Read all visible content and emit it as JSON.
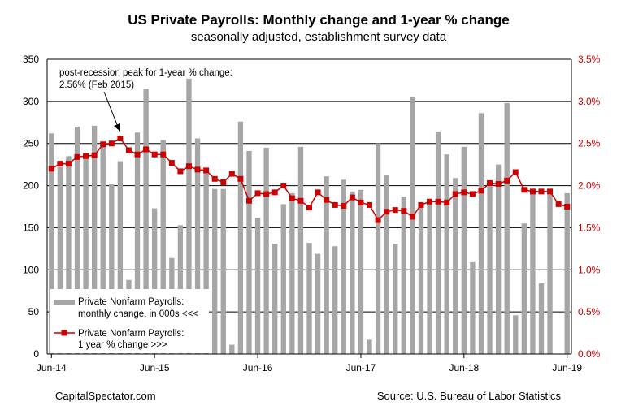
{
  "chart_data": {
    "type": "bar+line",
    "title": "US Private Payrolls: Monthly change and 1-year % change",
    "subtitle": "seasonally adjusted, establishment survey data",
    "x_tick_labels": [
      "Jun-14",
      "Jun-15",
      "Jun-16",
      "Jun-17",
      "Jun-18",
      "Jun-19"
    ],
    "y_left_ticks": [
      "0",
      "50",
      "100",
      "150",
      "200",
      "250",
      "300",
      "350"
    ],
    "y_right_ticks": [
      "0.0%",
      "0.5%",
      "1.0%",
      "1.5%",
      "2.0%",
      "2.5%",
      "3.0%",
      "3.5%"
    ],
    "y_left_range": [
      0,
      350
    ],
    "y_right_range": [
      0,
      3.5
    ],
    "months": [
      "Jun-14",
      "Jul-14",
      "Aug-14",
      "Sep-14",
      "Oct-14",
      "Nov-14",
      "Dec-14",
      "Jan-15",
      "Feb-15",
      "Mar-15",
      "Apr-15",
      "May-15",
      "Jun-15",
      "Jul-15",
      "Aug-15",
      "Sep-15",
      "Oct-15",
      "Nov-15",
      "Dec-15",
      "Jan-16",
      "Feb-16",
      "Mar-16",
      "Apr-16",
      "May-16",
      "Jun-16",
      "Jul-16",
      "Aug-16",
      "Sep-16",
      "Oct-16",
      "Nov-16",
      "Dec-16",
      "Jan-17",
      "Feb-17",
      "Mar-17",
      "Apr-17",
      "May-17",
      "Jun-17",
      "Jul-17",
      "Aug-17",
      "Sep-17",
      "Oct-17",
      "Nov-17",
      "Dec-17",
      "Jan-18",
      "Feb-18",
      "Mar-18",
      "Apr-18",
      "May-18",
      "Jun-18",
      "Jul-18",
      "Aug-18",
      "Sep-18",
      "Oct-18",
      "Nov-18",
      "Dec-18",
      "Jan-19",
      "Feb-19",
      "Mar-19",
      "Apr-19",
      "May-19",
      "Jun-19"
    ],
    "series": [
      {
        "name": "Private Nonfarm Payrolls: monthly change, in 000s <<<",
        "type": "bar",
        "axis": "left",
        "color": "#a6a6a6",
        "values": [
          262,
          222,
          235,
          270,
          232,
          271,
          250,
          202,
          229,
          88,
          263,
          315,
          173,
          254,
          114,
          153,
          327,
          256,
          218,
          196,
          196,
          11,
          276,
          241,
          162,
          245,
          131,
          178,
          191,
          246,
          132,
          119,
          211,
          128,
          207,
          193,
          195,
          17,
          250,
          212,
          131,
          187,
          305,
          175,
          180,
          264,
          237,
          209,
          246,
          109,
          286,
          200,
          225,
          298,
          46,
          155,
          195,
          84,
          192,
          0,
          191
        ]
      },
      {
        "name": "Private Nonfarm Payrolls: 1 year % change >>>",
        "type": "line",
        "axis": "right",
        "color": "#cc0000",
        "values": [
          2.2,
          2.26,
          2.26,
          2.34,
          2.35,
          2.36,
          2.49,
          2.5,
          2.56,
          2.42,
          2.37,
          2.43,
          2.37,
          2.37,
          2.27,
          2.17,
          2.23,
          2.19,
          2.18,
          2.08,
          2.04,
          2.14,
          2.08,
          1.82,
          1.91,
          1.9,
          1.92,
          2.0,
          1.85,
          1.82,
          1.74,
          1.92,
          1.83,
          1.77,
          1.76,
          1.86,
          1.8,
          1.77,
          1.59,
          1.69,
          1.71,
          1.7,
          1.63,
          1.77,
          1.81,
          1.81,
          1.8,
          1.9,
          1.92,
          1.9,
          1.94,
          2.03,
          2.02,
          2.06,
          2.16,
          1.95,
          1.93,
          1.93,
          1.93,
          1.78,
          1.75
        ]
      }
    ],
    "annotation": {
      "line1": "post-recession peak for 1-year % change:",
      "line2": "2.56% (Feb 2015)"
    },
    "legend": {
      "bar_line1": "Private Nonfarm Payrolls:",
      "bar_line2": "monthly change, in 000s <<<",
      "line_line1": "Private Nonfarm Payrolls:",
      "line_line2": "1 year % change >>>",
      "position": "bottom-left"
    },
    "gridlines": true
  },
  "footer": {
    "left": "CapitalSpectator.com",
    "right": "Source: U.S. Bureau of Labor Statistics"
  }
}
